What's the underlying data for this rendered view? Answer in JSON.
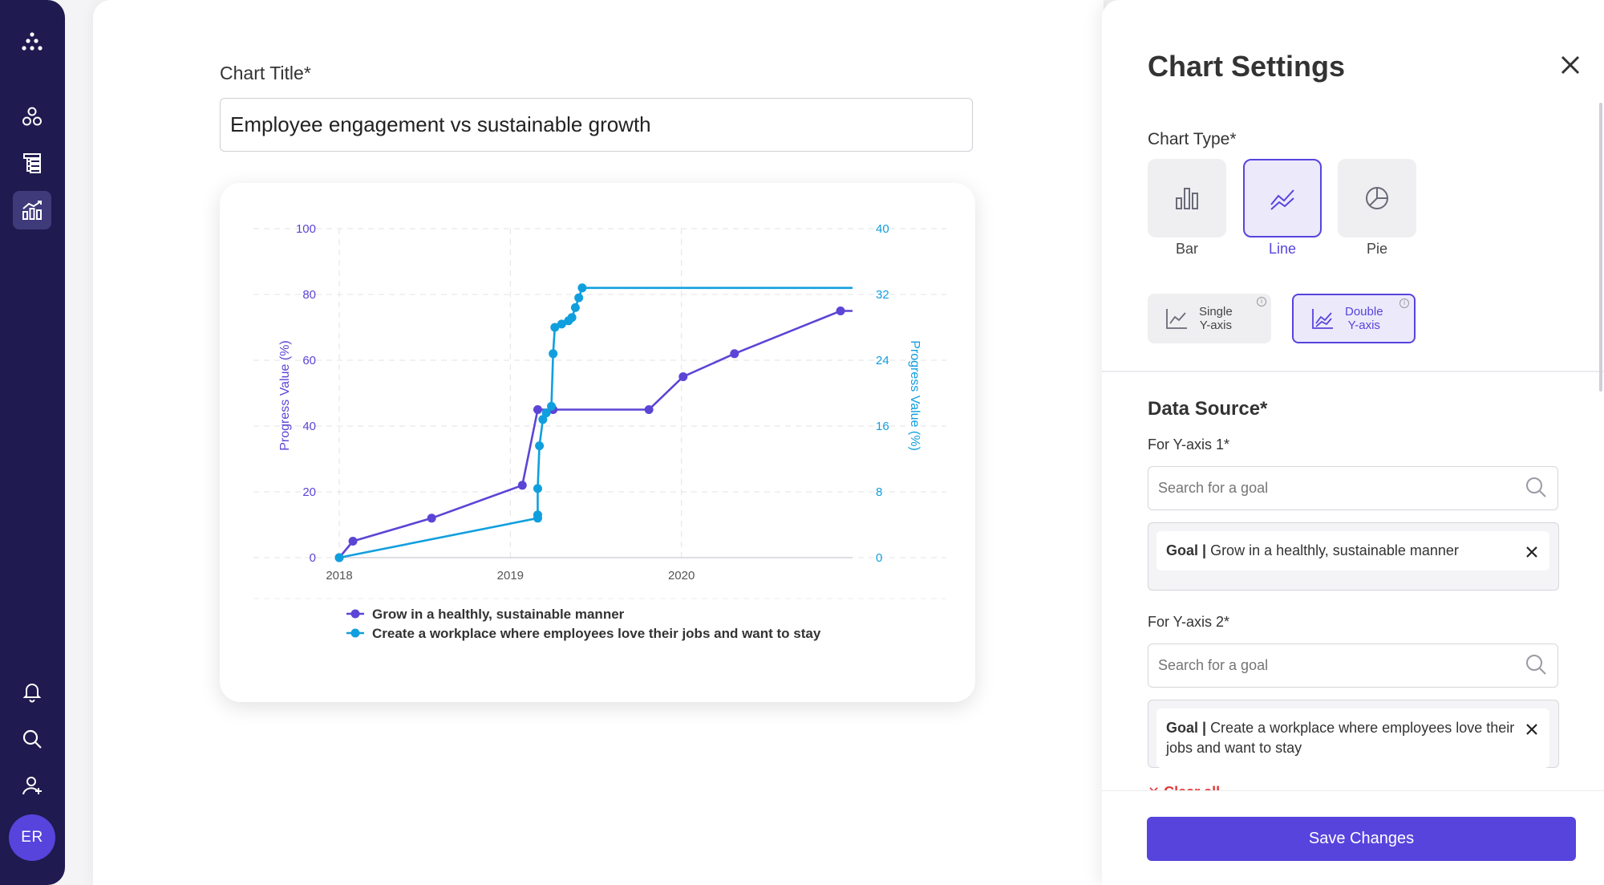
{
  "sidebar": {
    "icons": [
      "logo-icon",
      "goals-icon",
      "tree-list-icon",
      "analytics-icon",
      "bell-icon",
      "search-icon",
      "add-user-icon"
    ],
    "avatar_initials": "ER"
  },
  "main": {
    "title_label": "Chart Title*",
    "title_value": "Employee engagement vs sustainable growth"
  },
  "chart_data": {
    "type": "line",
    "title": "",
    "xlabel": "",
    "ylabel": "Progress Value (%)",
    "y2label": "Progress Value (%)",
    "ylim": [
      0,
      100
    ],
    "y2lim": [
      0,
      40
    ],
    "y_ticks": [
      "0",
      "20",
      "40",
      "60",
      "80",
      "100"
    ],
    "y2_ticks": [
      "0",
      "8",
      "16",
      "24",
      "32",
      "40"
    ],
    "x_ticks": [
      "2018",
      "2019",
      "2020"
    ],
    "xlim": [
      2018.0,
      2021.0
    ],
    "grid": true,
    "legend_position": "bottom",
    "series": [
      {
        "name": "Grow in a healthly, sustainable manner",
        "axis": "left",
        "color": "#5b45d6",
        "x": [
          2018.0,
          2018.08,
          2018.54,
          2019.07,
          2019.16,
          2019.25,
          2019.81,
          2020.01,
          2020.31,
          2020.93,
          2021.0
        ],
        "y": [
          0,
          5,
          12,
          22,
          45,
          45,
          45,
          55,
          62,
          75,
          75
        ]
      },
      {
        "name": "Create a workplace where employees love their jobs and want to stay",
        "axis": "right",
        "color": "#109fde",
        "x": [
          2018.0,
          2019.16,
          2019.16,
          2019.16,
          2019.17,
          2019.19,
          2019.21,
          2019.24,
          2019.25,
          2019.26,
          2019.3,
          2019.34,
          2019.36,
          2019.38,
          2019.4,
          2019.42,
          2021.0
        ],
        "y": [
          0,
          4.8,
          5.2,
          8.4,
          13.6,
          16.8,
          17.6,
          18.4,
          24.8,
          28.0,
          28.4,
          28.8,
          29.2,
          30.4,
          31.6,
          32.8,
          32.8
        ]
      }
    ]
  },
  "settings": {
    "title": "Chart Settings",
    "chart_type_label": "Chart Type*",
    "chart_types": [
      {
        "label": "Bar",
        "icon": "bar-chart-icon",
        "selected": false
      },
      {
        "label": "Line",
        "icon": "line-chart-icon",
        "selected": true
      },
      {
        "label": "Pie",
        "icon": "pie-chart-icon",
        "selected": false
      }
    ],
    "axis_options": [
      {
        "line1": "Single",
        "line2": "Y-axis",
        "selected": false
      },
      {
        "line1": "Double",
        "line2": "Y-axis",
        "selected": true
      }
    ],
    "data_source_title": "Data Source*",
    "y1_label": "For Y-axis 1*",
    "y2_label": "For Y-axis 2*",
    "search_placeholder": "Search for a goal",
    "goal_prefix": "Goal |",
    "goal1": "Grow in a healthly, sustainable manner",
    "goal2": "Create a workplace where employees love their jobs and want to stay",
    "clear_all": "✕ Clear all",
    "save_label": "Save Changes"
  },
  "colors": {
    "accent": "#5744dd",
    "sidebar": "#1f1a4f",
    "series1": "#5b45d6",
    "series2": "#109fde"
  }
}
